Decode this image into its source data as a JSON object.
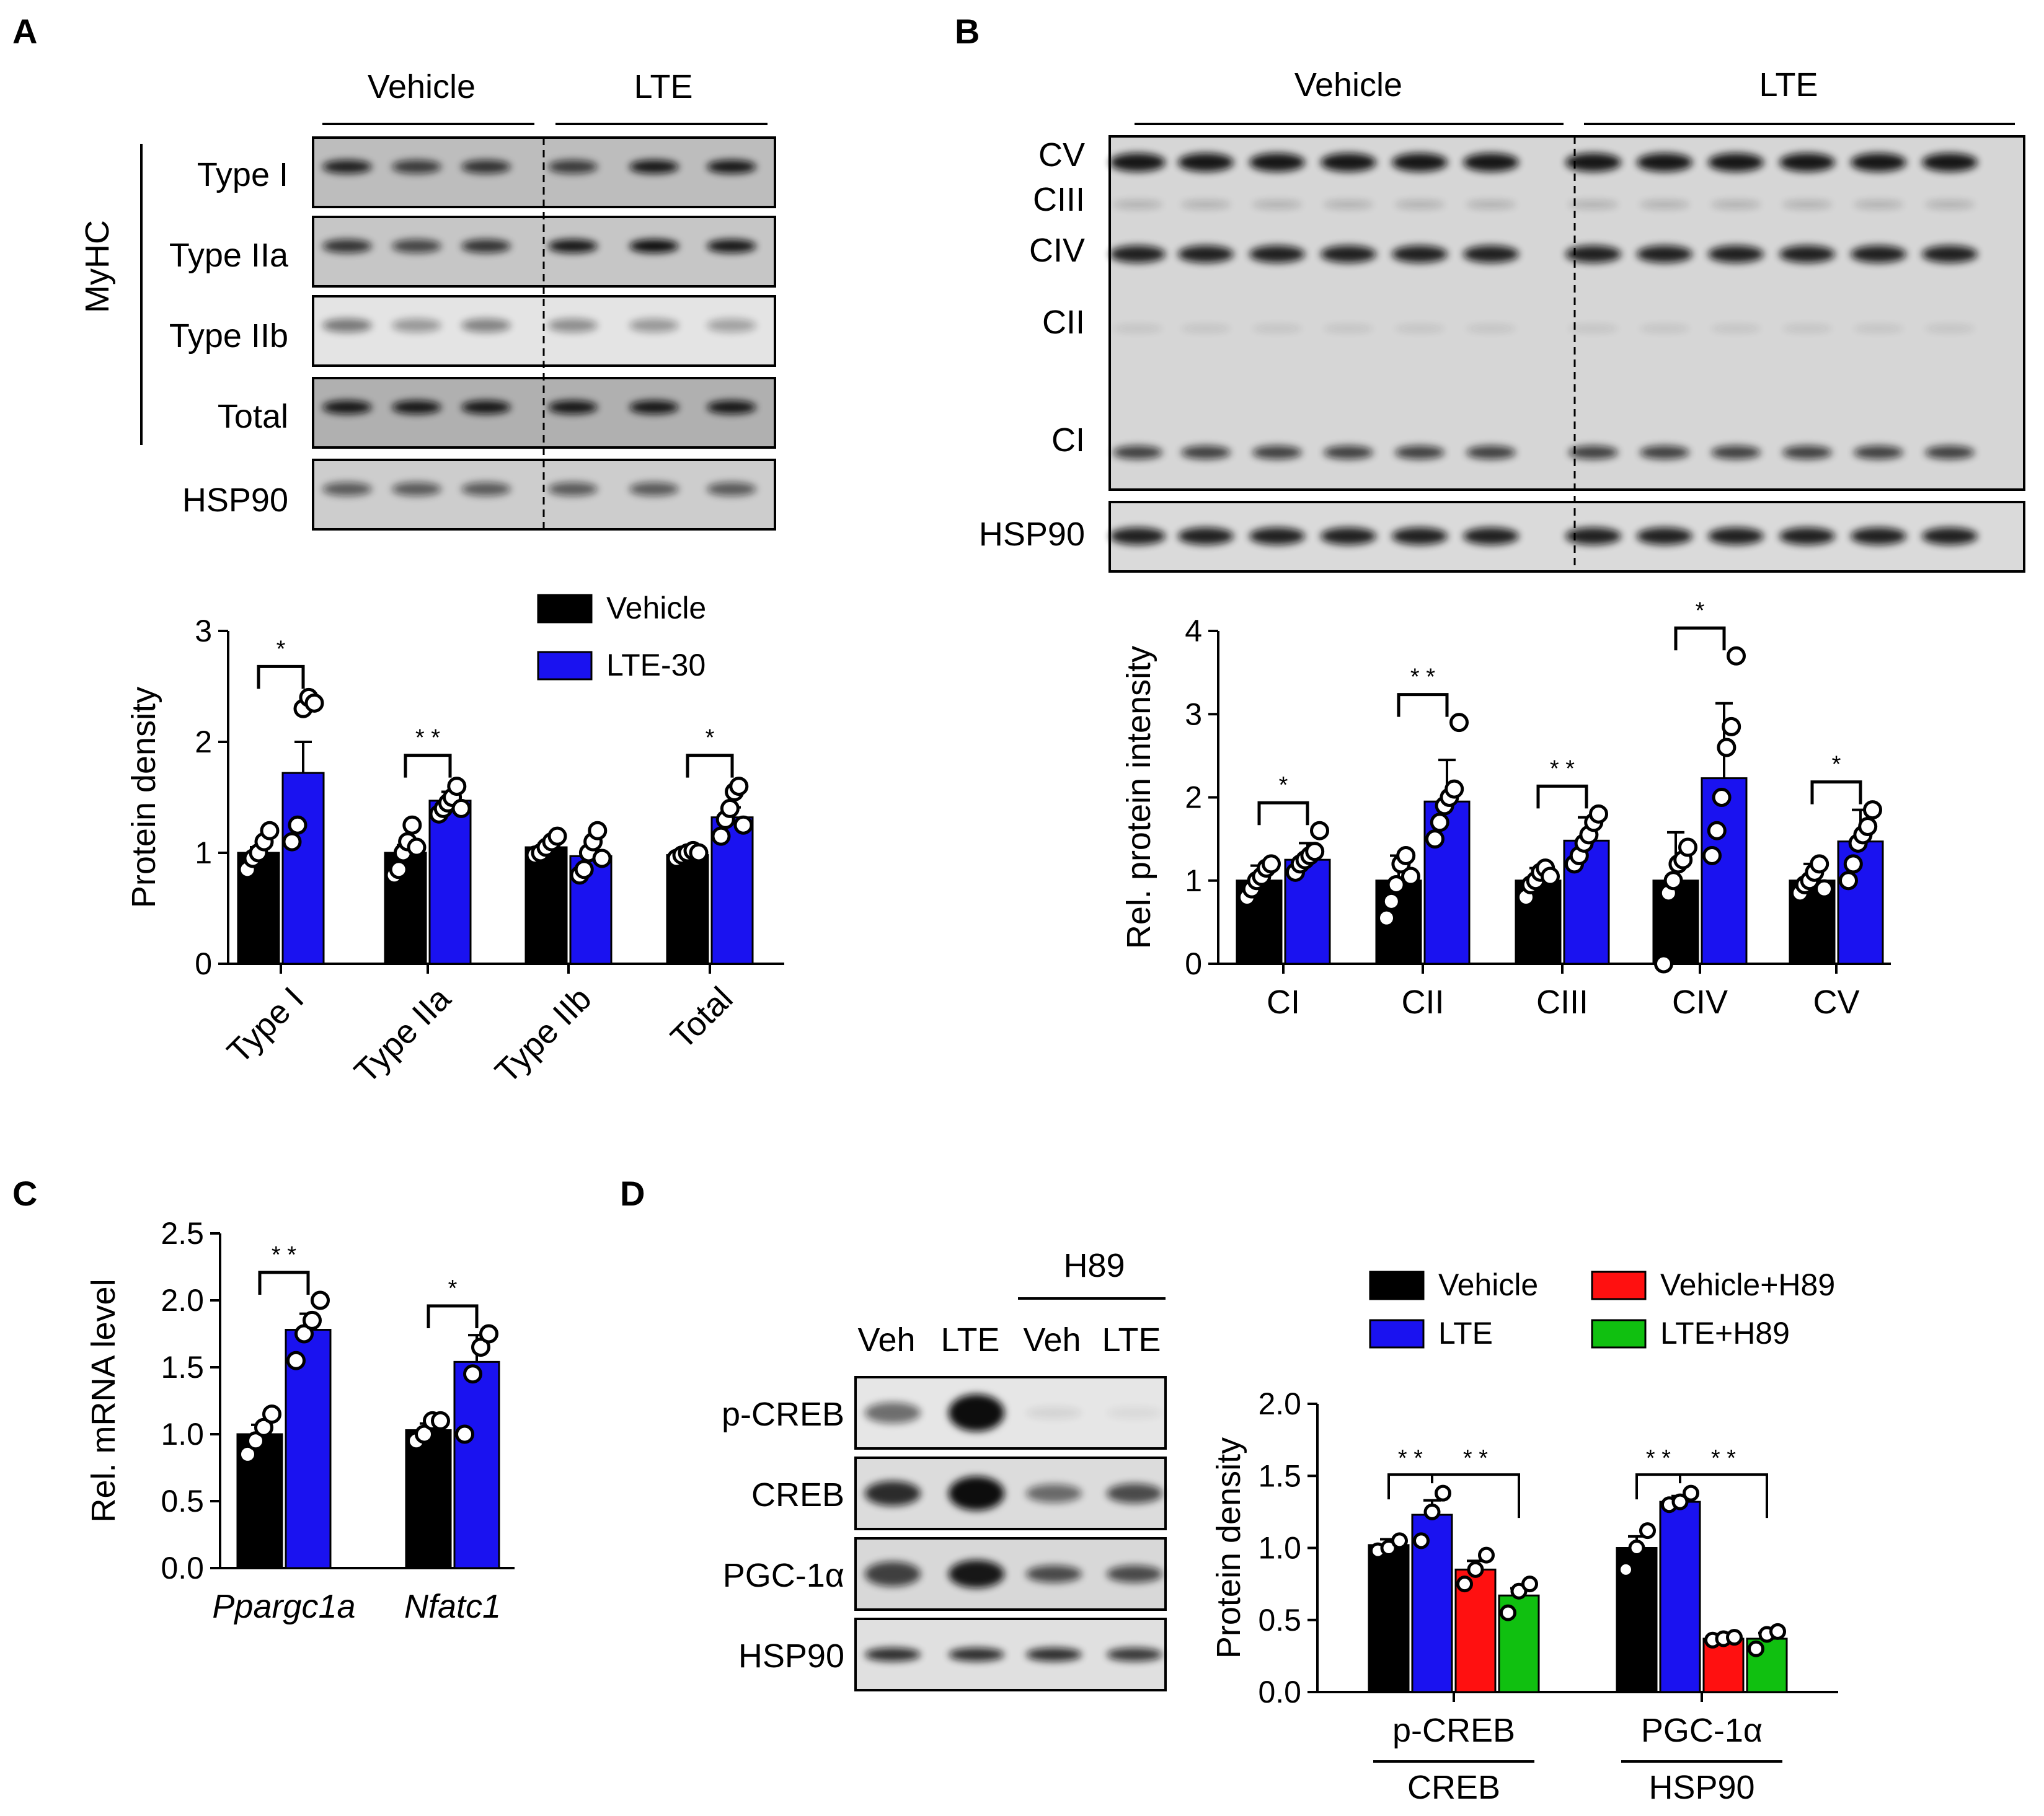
{
  "panels": {
    "A": {
      "label": "A",
      "blot": {
        "groups": [
          "Vehicle",
          "LTE"
        ],
        "side_label": "MyHC",
        "rows": [
          "Type I",
          "Type IIa",
          "Type IIb",
          "Total",
          "HSP90"
        ]
      }
    },
    "B": {
      "label": "B",
      "blot": {
        "groups": [
          "Vehicle",
          "LTE"
        ],
        "bands": [
          "CV",
          "CIII",
          "CIV",
          "CII",
          "CI"
        ],
        "loading": "HSP90"
      }
    },
    "C": {
      "label": "C"
    },
    "D": {
      "label": "D",
      "blot": {
        "treatment": "H89",
        "lanes": [
          "Veh",
          "LTE",
          "Veh",
          "LTE"
        ],
        "rows": [
          "p-CREB",
          "CREB",
          "PGC-1α",
          "HSP90"
        ]
      }
    }
  },
  "colors": {
    "vehicle": "#000000",
    "lte": "#1a12f0",
    "vehicle_h89": "#ff1010",
    "lte_h89": "#10c010"
  },
  "chart_data": [
    {
      "panel": "A",
      "type": "bar",
      "categories": [
        "Type I",
        "Type IIa",
        "Type IIb",
        "Total"
      ],
      "ylabel": "Protein density",
      "ylim": [
        0,
        3
      ],
      "yticks": [
        "0",
        "1",
        "2",
        "3"
      ],
      "legend": [
        "Vehicle",
        "LTE-30"
      ],
      "legend_position": "top-right",
      "series": [
        {
          "name": "Vehicle",
          "color": "#000000",
          "values": [
            1.0,
            1.0,
            1.05,
            0.98
          ],
          "err": [
            0.05,
            0.07,
            0.03,
            0.04
          ],
          "points": [
            [
              0.85,
              0.95,
              1.0,
              1.1,
              1.2
            ],
            [
              0.8,
              0.85,
              1.0,
              1.1,
              1.25,
              1.05
            ],
            [
              0.98,
              1.0,
              1.05,
              1.1,
              1.15
            ],
            [
              0.95,
              0.98,
              1.0,
              1.02,
              1.0
            ]
          ]
        },
        {
          "name": "LTE-30",
          "color": "#1a12f0",
          "values": [
            1.72,
            1.47,
            0.97,
            1.32
          ],
          "err": [
            0.28,
            0.08,
            0.07,
            0.09
          ],
          "points": [
            [
              1.1,
              1.25,
              2.3,
              2.4,
              2.35
            ],
            [
              1.35,
              1.4,
              1.45,
              1.5,
              1.6,
              1.4
            ],
            [
              0.8,
              0.85,
              1.0,
              1.1,
              1.2,
              0.95
            ],
            [
              1.15,
              1.3,
              1.4,
              1.55,
              1.6,
              1.25
            ]
          ]
        }
      ],
      "significance": [
        "*",
        "**",
        "",
        "*"
      ]
    },
    {
      "panel": "B",
      "type": "bar",
      "categories": [
        "CI",
        "CII",
        "CIII",
        "CIV",
        "CV"
      ],
      "ylabel": "Rel. protein intensity",
      "ylim": [
        0,
        4
      ],
      "yticks": [
        "0",
        "1",
        "2",
        "3",
        "4"
      ],
      "series": [
        {
          "name": "Vehicle",
          "color": "#000000",
          "values": [
            1.0,
            1.0,
            1.0,
            1.0,
            1.0
          ],
          "err": [
            0.18,
            0.3,
            0.15,
            0.58,
            0.2
          ],
          "points": [
            [
              0.8,
              0.9,
              1.0,
              1.05,
              1.15,
              1.2
            ],
            [
              0.55,
              0.75,
              0.95,
              1.2,
              1.3,
              1.05
            ],
            [
              0.8,
              0.95,
              1.0,
              1.1,
              1.15,
              1.05
            ],
            [
              0.0,
              0.85,
              1.0,
              1.2,
              1.25,
              1.4
            ],
            [
              0.85,
              0.95,
              1.0,
              1.1,
              1.2,
              0.9
            ]
          ]
        },
        {
          "name": "LTE",
          "color": "#1a12f0",
          "values": [
            1.25,
            1.95,
            1.48,
            2.23,
            1.47
          ],
          "err": [
            0.2,
            0.5,
            0.28,
            0.9,
            0.38
          ],
          "points": [
            [
              1.1,
              1.2,
              1.25,
              1.3,
              1.35,
              1.6
            ],
            [
              1.5,
              1.7,
              1.9,
              2.0,
              2.1,
              2.9
            ],
            [
              1.2,
              1.3,
              1.45,
              1.55,
              1.7,
              1.8
            ],
            [
              1.3,
              1.6,
              2.0,
              2.6,
              2.85,
              3.7
            ],
            [
              1.0,
              1.2,
              1.45,
              1.55,
              1.65,
              1.85
            ]
          ]
        }
      ],
      "significance": [
        "*",
        "**",
        "**",
        "*",
        "*"
      ]
    },
    {
      "panel": "C",
      "type": "bar",
      "categories": [
        "Ppargc1a",
        "Nfatc1"
      ],
      "ylabel": "Rel. mRNA level",
      "ylim": [
        0,
        2.5
      ],
      "yticks": [
        "0.0",
        "0.5",
        "1.0",
        "1.5",
        "2.0",
        "2.5"
      ],
      "series": [
        {
          "name": "Vehicle",
          "color": "#000000",
          "values": [
            1.0,
            1.03
          ],
          "err": [
            0.07,
            0.05
          ],
          "points": [
            [
              0.85,
              0.95,
              1.05,
              1.15
            ],
            [
              0.95,
              1.0,
              1.1,
              1.1
            ]
          ]
        },
        {
          "name": "LTE",
          "color": "#1a12f0",
          "values": [
            1.78,
            1.54
          ],
          "err": [
            0.12,
            0.2
          ],
          "points": [
            [
              1.55,
              1.75,
              1.85,
              2.0
            ],
            [
              1.0,
              1.45,
              1.65,
              1.75
            ]
          ]
        }
      ],
      "significance": [
        "**",
        "*"
      ]
    },
    {
      "panel": "D",
      "type": "bar",
      "categories": [
        [
          "p-CREB",
          "CREB"
        ],
        [
          "PGC-1α",
          "HSP90"
        ]
      ],
      "ylabel": "Protein density",
      "ylim": [
        0,
        2.0
      ],
      "yticks": [
        "0.0",
        "0.5",
        "1.0",
        "1.5",
        "2.0"
      ],
      "legend": [
        "Vehicle",
        "Vehicle+H89",
        "LTE",
        "LTE+H89"
      ],
      "legend_position": "top",
      "series": [
        {
          "name": "Vehicle",
          "color": "#000000",
          "values": [
            1.02,
            1.0
          ],
          "err": [
            0.04,
            0.08
          ],
          "points": [
            [
              0.98,
              1.0,
              1.05
            ],
            [
              0.85,
              1.0,
              1.12
            ]
          ]
        },
        {
          "name": "LTE",
          "color": "#1a12f0",
          "values": [
            1.23,
            1.32
          ],
          "err": [
            0.1,
            0.04
          ],
          "points": [
            [
              1.05,
              1.25,
              1.38
            ],
            [
              1.3,
              1.32,
              1.38
            ]
          ]
        },
        {
          "name": "Vehicle+H89",
          "color": "#ff1010",
          "values": [
            0.85,
            0.37
          ],
          "err": [
            0.06,
            0.01
          ],
          "points": [
            [
              0.75,
              0.85,
              0.95
            ],
            [
              0.36,
              0.37,
              0.38
            ]
          ]
        },
        {
          "name": "LTE+H89",
          "color": "#10c010",
          "values": [
            0.67,
            0.37
          ],
          "err": [
            0.05,
            0.04
          ],
          "points": [
            [
              0.55,
              0.7,
              0.75
            ],
            [
              0.3,
              0.4,
              0.42
            ]
          ]
        }
      ],
      "significance": [
        [
          "**",
          "**"
        ],
        [
          "**",
          "**"
        ]
      ]
    }
  ]
}
